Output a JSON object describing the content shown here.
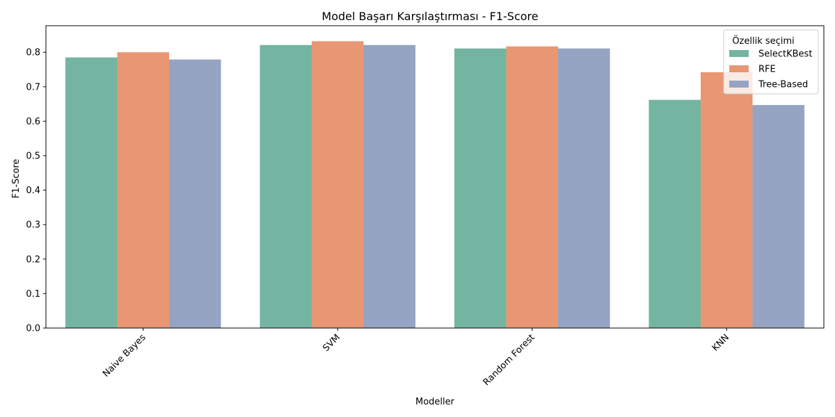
{
  "chart_data": {
    "type": "bar",
    "title": "Model Başarı Karşılaştırması - F1-Score",
    "xlabel": "Modeller",
    "ylabel": "F1-Score",
    "categories": [
      "Naive Bayes",
      "SVM",
      "Random Forest",
      "KNN"
    ],
    "series": [
      {
        "name": "SelectKBest",
        "color": "#73b5a1",
        "values": [
          0.785,
          0.821,
          0.811,
          0.662
        ]
      },
      {
        "name": "RFE",
        "color": "#e99673",
        "values": [
          0.8,
          0.832,
          0.817,
          0.742
        ]
      },
      {
        "name": "Tree-Based",
        "color": "#95a4c3",
        "values": [
          0.779,
          0.821,
          0.811,
          0.647
        ]
      }
    ],
    "ylim": [
      0,
      0.877
    ],
    "yticks": [
      "0.0",
      "0.1",
      "0.2",
      "0.3",
      "0.4",
      "0.5",
      "0.6",
      "0.7",
      "0.8"
    ],
    "legend": {
      "title": "Özellik seçimi",
      "position": "top-right"
    },
    "grid": false
  }
}
